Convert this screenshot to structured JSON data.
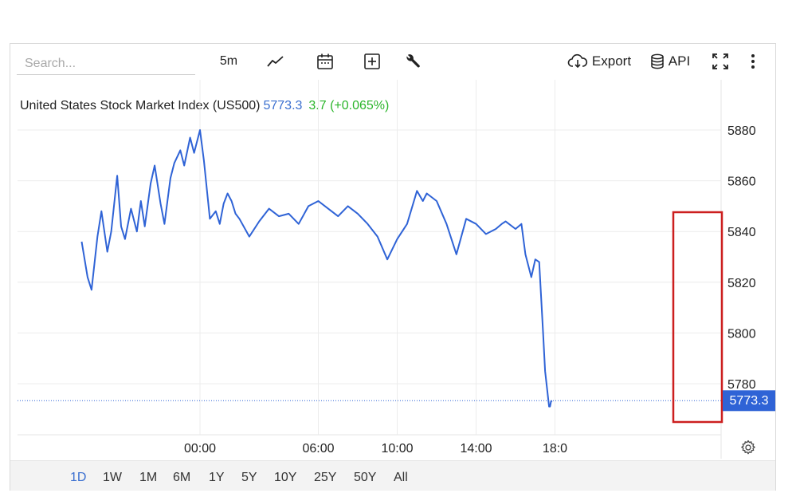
{
  "search": {
    "placeholder": "Search..."
  },
  "toolbar": {
    "interval": "5m",
    "export_label": "Export",
    "api_label": "API"
  },
  "header": {
    "name": "United States Stock Market Index (US500)",
    "price": "5773.3",
    "change": "3.7 (+0.065%)"
  },
  "periods": [
    "1D",
    "1W",
    "1M",
    "6M",
    "1Y",
    "5Y",
    "10Y",
    "25Y",
    "50Y",
    "All"
  ],
  "active_period": "1D",
  "colors": {
    "line": "#2f63d6",
    "grid": "#ececec",
    "highlight_box": "#cc1f1f",
    "price_tag": "#2f63d6",
    "change_positive": "#2bb52b"
  },
  "chart_data": {
    "type": "line",
    "title": "",
    "xlabel": "",
    "ylabel": "",
    "ylim": [
      5764,
      5890
    ],
    "yticks": [
      5780,
      5800,
      5820,
      5840,
      5860,
      5880
    ],
    "xticks": [
      {
        "label": "00:00",
        "x": 24.0
      },
      {
        "label": "06:00",
        "x": 30.0
      },
      {
        "label": "10:00",
        "x": 34.0
      },
      {
        "label": "14:00",
        "x": 38.0
      },
      {
        "label": "18:0",
        "x": 42.0
      }
    ],
    "last_value_label": "5773.3",
    "grid": true,
    "series": [
      {
        "x": [
          18.0,
          18.3,
          18.5,
          18.8,
          19.0,
          19.3,
          19.5,
          19.8,
          20.0,
          20.2,
          20.5,
          20.8,
          21.0,
          21.2,
          21.5,
          21.7,
          22.0,
          22.2,
          22.5,
          22.7,
          23.0,
          23.2,
          23.5,
          23.7,
          24.0,
          24.2,
          24.5,
          24.8,
          25.0,
          25.2,
          25.4,
          25.6,
          25.8,
          26.0,
          26.5,
          27.0,
          27.5,
          28.0,
          28.5,
          29.0,
          29.5,
          30.0,
          30.5,
          31.0,
          31.5,
          32.0,
          32.5,
          33.0,
          33.5,
          34.0,
          34.5,
          35.0,
          35.3,
          35.5,
          36.0,
          36.5,
          37.0,
          37.5,
          38.0,
          38.5,
          39.0,
          39.3,
          39.5,
          40.0,
          40.3,
          40.5,
          40.8,
          41.0,
          41.2,
          41.4,
          41.5,
          41.6,
          41.7,
          41.75,
          41.8,
          41.85
        ],
        "values": [
          5836,
          5822,
          5817,
          5838,
          5848,
          5832,
          5840,
          5862,
          5842,
          5837,
          5849,
          5840,
          5852,
          5842,
          5859,
          5866,
          5851,
          5843,
          5861,
          5867,
          5872,
          5866,
          5877,
          5871,
          5880,
          5868,
          5845,
          5848,
          5843,
          5851,
          5855,
          5852,
          5847,
          5845,
          5838,
          5844,
          5849,
          5846,
          5847,
          5843,
          5850,
          5852,
          5849,
          5846,
          5850,
          5847,
          5843,
          5838,
          5829,
          5837,
          5843,
          5856,
          5852,
          5855,
          5852,
          5843,
          5831,
          5845,
          5843,
          5839,
          5841,
          5843,
          5844,
          5841,
          5843,
          5831,
          5822,
          5829,
          5828,
          5800,
          5785,
          5778,
          5771,
          5771,
          5773,
          5773.3
        ]
      }
    ]
  }
}
